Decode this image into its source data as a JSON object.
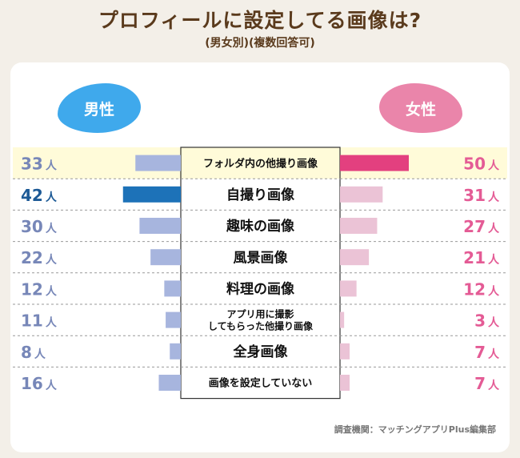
{
  "title": "プロフィールに設定してる画像は?",
  "subtitle": "(男女別)(複数回答可)",
  "legend": {
    "male": "男性",
    "female": "女性"
  },
  "unit": "人",
  "source": "調査機関：マッチングアプリPlus編集部",
  "colors": {
    "male_bar": "#a7b5de",
    "male_highlight": "#1d72b8",
    "male_text": "#7787b8",
    "male_highlight_text": "#1d5a96",
    "female_bar": "#ebc3d6",
    "female_highlight": "#e3407f",
    "female_text": "#e45b95",
    "highlight_bg": "#fffbd9",
    "male_bubble": "#3fa9ec",
    "female_bubble": "#ea85aa"
  },
  "chart_data": {
    "type": "bar",
    "orientation": "horizontal-butterfly",
    "categories": [
      "フォルダ内の他撮り画像",
      "自撮り画像",
      "趣味の画像",
      "風景画像",
      "料理の画像",
      "アプリ用に撮影\nしてもらった他撮り画像",
      "全身画像",
      "画像を設定していない"
    ],
    "series": [
      {
        "name": "男性",
        "values": [
          33,
          42,
          30,
          22,
          12,
          11,
          8,
          16
        ]
      },
      {
        "name": "女性",
        "values": [
          50,
          31,
          27,
          21,
          12,
          3,
          7,
          7
        ]
      }
    ],
    "highlight": {
      "male_index": 1,
      "female_index": 0,
      "highlight_row": 0
    },
    "xlabel": "",
    "ylabel": ""
  }
}
